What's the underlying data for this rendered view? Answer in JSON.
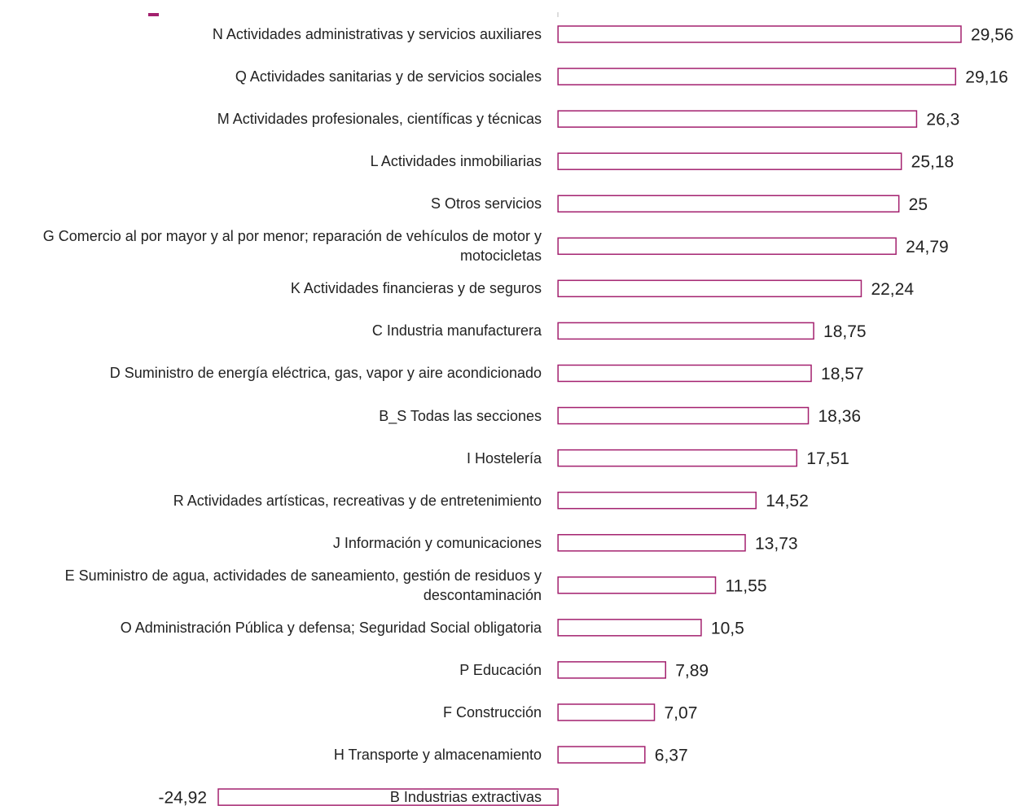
{
  "chart_data": {
    "type": "bar",
    "orientation": "horizontal",
    "color": "#a3206e",
    "categories": [
      "N Actividades administrativas y servicios auxiliares",
      "Q Actividades sanitarias y de servicios sociales",
      "M Actividades profesionales, científicas y técnicas",
      "L Actividades inmobiliarias",
      "S Otros servicios",
      "G Comercio al por mayor y al por menor; reparación de vehículos de motor y motocicletas",
      "K Actividades financieras y de seguros",
      "C Industria manufacturera",
      "D Suministro de energía eléctrica, gas, vapor y aire acondicionado",
      "B_S Todas las secciones",
      "I Hostelería",
      "R Actividades artísticas, recreativas y de entretenimiento",
      "J Información y comunicaciones",
      "E Suministro de agua, actividades de saneamiento, gestión de residuos y descontaminación",
      "O Administración Pública y defensa; Seguridad Social obligatoria",
      "P Educación",
      "F Construcción",
      "H Transporte y almacenamiento",
      "B Industrias extractivas"
    ],
    "values": [
      29.56,
      29.16,
      26.3,
      25.18,
      25,
      24.79,
      22.24,
      18.75,
      18.57,
      18.36,
      17.51,
      14.52,
      13.73,
      11.55,
      10.5,
      7.89,
      7.07,
      6.37,
      -24.92
    ],
    "value_labels": [
      "29,56",
      "29,16",
      "26,3",
      "25,18",
      "25",
      "24,79",
      "22,24",
      "18,75",
      "18,57",
      "18,36",
      "17,51",
      "14,52",
      "13,73",
      "11,55",
      "10,5",
      "7,89",
      "7,07",
      "6,37",
      "-24,92"
    ]
  }
}
